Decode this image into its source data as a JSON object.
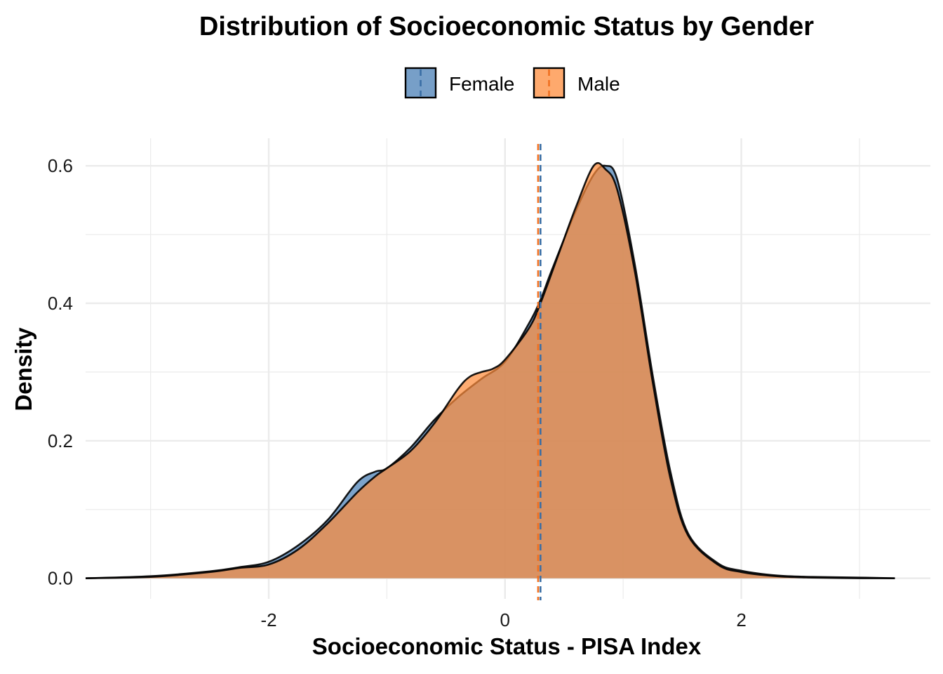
{
  "chart_data": {
    "type": "area",
    "title": "Distribution of Socioeconomic Status by Gender",
    "xlabel": "Socioeconomic Status - PISA Index",
    "ylabel": "Density",
    "xlim": [
      -3.55,
      3.6
    ],
    "ylim": [
      -0.03,
      0.64
    ],
    "x_ticks": [
      -2,
      0,
      2
    ],
    "x_tick_labels": [
      "-2",
      "0",
      "2"
    ],
    "y_ticks": [
      0.0,
      0.2,
      0.4,
      0.6
    ],
    "y_tick_labels": [
      "0.0",
      "0.2",
      "0.4",
      "0.6"
    ],
    "grid": true,
    "legend_position": "top",
    "series": [
      {
        "name": "Female",
        "color": "#4a7fb5",
        "mean": 0.3,
        "x": [
          -3.55,
          -3.0,
          -2.5,
          -2.25,
          -2.0,
          -1.75,
          -1.5,
          -1.25,
          -1.1,
          -1.0,
          -0.8,
          -0.6,
          -0.4,
          -0.2,
          0.0,
          0.2,
          0.3,
          0.4,
          0.6,
          0.75,
          0.85,
          0.95,
          1.1,
          1.25,
          1.4,
          1.55,
          1.8,
          2.0,
          2.3,
          2.6,
          3.0,
          3.3
        ],
        "y": [
          0.0,
          0.003,
          0.01,
          0.016,
          0.024,
          0.048,
          0.085,
          0.14,
          0.155,
          0.16,
          0.19,
          0.23,
          0.263,
          0.29,
          0.315,
          0.37,
          0.405,
          0.45,
          0.535,
          0.587,
          0.6,
          0.58,
          0.455,
          0.295,
          0.155,
          0.065,
          0.022,
          0.011,
          0.004,
          0.002,
          0.001,
          0.0
        ]
      },
      {
        "name": "Male",
        "color": "#fd8c3c",
        "mean": 0.28,
        "x": [
          -3.55,
          -3.0,
          -2.5,
          -2.25,
          -2.0,
          -1.75,
          -1.5,
          -1.25,
          -1.1,
          -1.0,
          -0.8,
          -0.6,
          -0.4,
          -0.3,
          -0.2,
          -0.1,
          0.0,
          0.2,
          0.3,
          0.45,
          0.6,
          0.75,
          0.85,
          0.95,
          1.1,
          1.25,
          1.4,
          1.55,
          1.8,
          2.0,
          2.3,
          2.6,
          3.0,
          3.3
        ],
        "y": [
          0.0,
          0.002,
          0.009,
          0.015,
          0.02,
          0.042,
          0.08,
          0.125,
          0.148,
          0.16,
          0.185,
          0.225,
          0.275,
          0.293,
          0.3,
          0.305,
          0.318,
          0.363,
          0.4,
          0.47,
          0.54,
          0.6,
          0.595,
          0.565,
          0.445,
          0.285,
          0.145,
          0.062,
          0.02,
          0.009,
          0.003,
          0.001,
          0.0,
          0.0
        ]
      }
    ]
  }
}
